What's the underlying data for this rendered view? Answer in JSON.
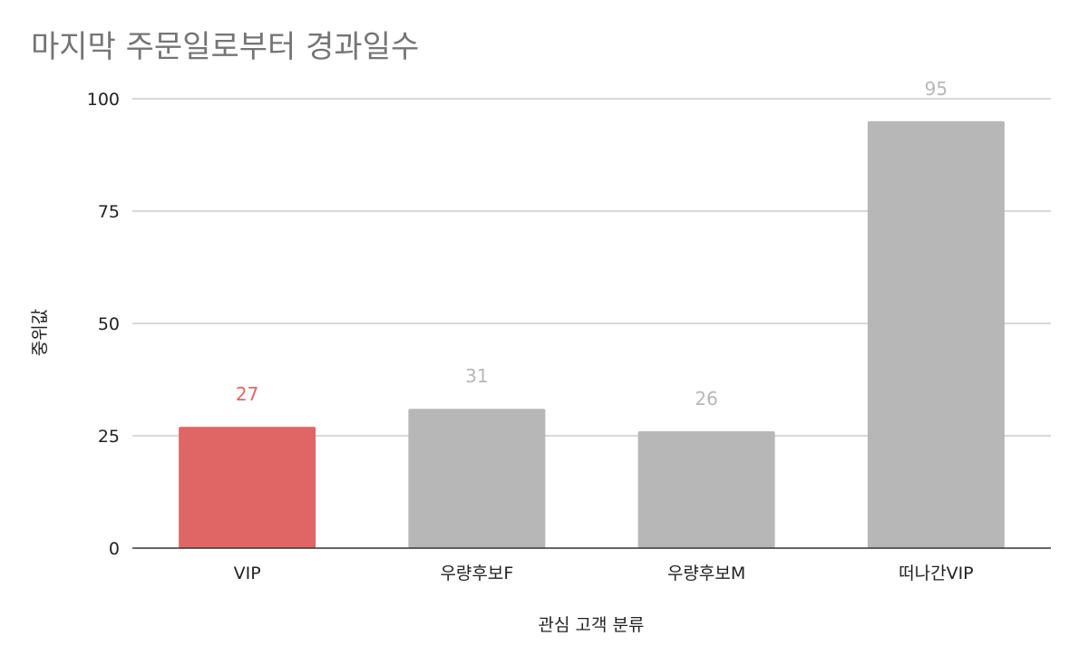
{
  "chart_data": {
    "type": "bar",
    "title": "마지막 주문일로부터 경과일수",
    "xlabel": "관심 고객 분류",
    "ylabel": "중위값",
    "categories": [
      "VIP",
      "우량후보F",
      "우량후보M",
      "떠나간VIP"
    ],
    "values": [
      27,
      31,
      26,
      95
    ],
    "data_labels": [
      "27",
      "31",
      "26",
      "95"
    ],
    "bar_colors": [
      "#e06666",
      "#b7b7b7",
      "#b7b7b7",
      "#b7b7b7"
    ],
    "label_colors": [
      "#e06666",
      "#b7b7b7",
      "#b7b7b7",
      "#b7b7b7"
    ],
    "ylim": [
      0,
      100
    ],
    "yticks": [
      0,
      25,
      50,
      75,
      100
    ],
    "ytick_labels": [
      "0",
      "25",
      "50",
      "75",
      "100"
    ],
    "grid": true,
    "legend": "none"
  }
}
